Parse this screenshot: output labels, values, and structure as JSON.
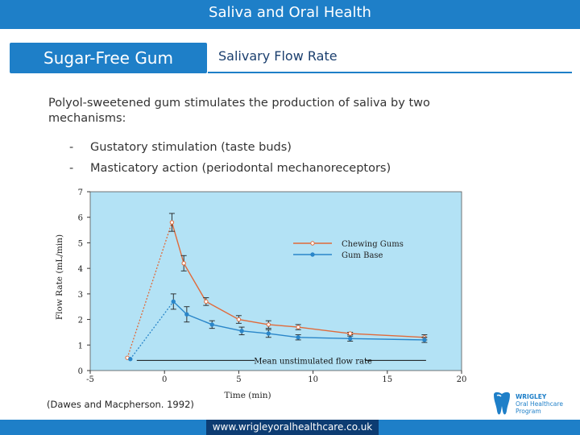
{
  "header": {
    "title": "Saliva and Oral Health"
  },
  "tabs": [
    {
      "label": "Sugar-Free Gum"
    },
    {
      "label": "Salivary Flow Rate"
    }
  ],
  "body": {
    "intro": "Polyol-sweetened gum stimulates the production of saliva by two mechanisms:",
    "bullets": [
      {
        "dash": "-",
        "text": "Gustatory stimulation (taste buds)"
      },
      {
        "dash": "-",
        "text": "Masticatory action (periodontal mechanoreceptors)"
      }
    ]
  },
  "citation": "(Dawes and Macpherson. 1992)",
  "footer": {
    "url": "www.wrigleyoralhealthcare.co.uk"
  },
  "logo": {
    "line1": "WRIGLEY",
    "line2": "Oral Healthcare",
    "line3": "Program"
  },
  "colors": {
    "accent": "#1e7fc8",
    "dark_blue": "#0d3c72",
    "plot_bg": "#b3e2f5",
    "chewing_gums": "#e06a3a",
    "gum_base": "#2a86c9"
  },
  "chart_data": {
    "type": "line",
    "title": "",
    "xlabel": "Time (min)",
    "ylabel": "Flow Rate (mL/min)",
    "xlim": [
      -5,
      20
    ],
    "ylim": [
      0,
      7
    ],
    "xticks": [
      -5,
      0,
      5,
      10,
      15,
      20
    ],
    "yticks": [
      0,
      1,
      2,
      3,
      4,
      5,
      6,
      7
    ],
    "legend": "top-right",
    "series": [
      {
        "name": "Chewing Gums",
        "x": [
          -2.5,
          0.5,
          1.3,
          2.8,
          5,
          7,
          9,
          12.5,
          17.5
        ],
        "y": [
          0.5,
          5.8,
          4.2,
          2.7,
          2.0,
          1.8,
          1.7,
          1.45,
          1.3
        ],
        "err": [
          0,
          0.35,
          0.3,
          0.15,
          0.15,
          0.15,
          0.1,
          0.05,
          0.1
        ]
      },
      {
        "name": "Gum Base",
        "x": [
          -2.3,
          0.6,
          1.5,
          3.2,
          5.2,
          7,
          9,
          12.5,
          17.5
        ],
        "y": [
          0.45,
          2.7,
          2.2,
          1.8,
          1.55,
          1.45,
          1.3,
          1.25,
          1.2
        ],
        "err": [
          0,
          0.3,
          0.3,
          0.15,
          0.15,
          0.15,
          0.1,
          0.1,
          0.1
        ]
      }
    ],
    "annotation": {
      "text": "Mean unstimulated flow rate",
      "y": 0.4,
      "x_start": -2.3,
      "x_end": 17.5
    }
  }
}
